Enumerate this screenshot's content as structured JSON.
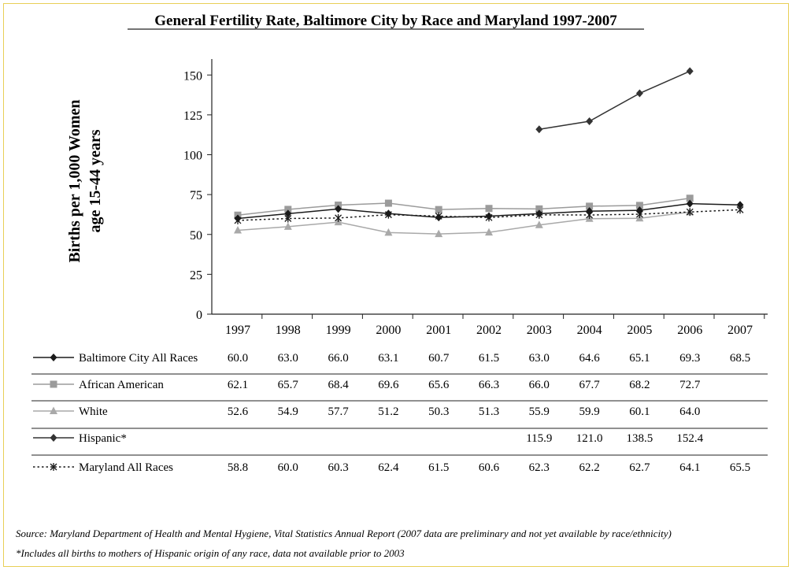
{
  "chart_data": {
    "type": "line",
    "title": "General Fertility Rate, Baltimore City by Race and Maryland 1997-2007",
    "ylabel_line1": "Births per 1,000 Women",
    "ylabel_line2": "age 15-44 years",
    "xlabel": "",
    "x": [
      "1997",
      "1998",
      "1999",
      "2000",
      "2001",
      "2002",
      "2003",
      "2004",
      "2005",
      "2006",
      "2007"
    ],
    "ylim": [
      0,
      160
    ],
    "yticks": [
      0,
      25,
      50,
      75,
      100,
      125,
      150
    ],
    "grid": false,
    "legend": "data-table-below",
    "series": [
      {
        "name": "Baltimore City All Races",
        "marker": "diamond",
        "color": "#1a1a1a",
        "dash": "solid",
        "values": [
          60.0,
          63.0,
          66.0,
          63.1,
          60.7,
          61.5,
          63.0,
          64.6,
          65.1,
          69.3,
          68.5
        ],
        "labels": [
          "60.0",
          "63.0",
          "66.0",
          "63.1",
          "60.7",
          "61.5",
          "63.0",
          "64.6",
          "65.1",
          "69.3",
          "68.5"
        ]
      },
      {
        "name": "African American",
        "marker": "square",
        "color": "#9b9b9b",
        "dash": "solid",
        "values": [
          62.1,
          65.7,
          68.4,
          69.6,
          65.6,
          66.3,
          66.0,
          67.7,
          68.2,
          72.7,
          null
        ],
        "labels": [
          "62.1",
          "65.7",
          "68.4",
          "69.6",
          "65.6",
          "66.3",
          "66.0",
          "67.7",
          "68.2",
          "72.7",
          ""
        ]
      },
      {
        "name": "White",
        "marker": "triangle",
        "color": "#a9a9a9",
        "dash": "solid",
        "values": [
          52.6,
          54.9,
          57.7,
          51.2,
          50.3,
          51.3,
          55.9,
          59.9,
          60.1,
          64.0,
          null
        ],
        "labels": [
          "52.6",
          "54.9",
          "57.7",
          "51.2",
          "50.3",
          "51.3",
          "55.9",
          "59.9",
          "60.1",
          "64.0",
          ""
        ]
      },
      {
        "name": "Hispanic*",
        "marker": "diamond",
        "color": "#333333",
        "dash": "solid",
        "values": [
          null,
          null,
          null,
          null,
          null,
          null,
          115.9,
          121.0,
          138.5,
          152.4,
          null
        ],
        "labels": [
          "",
          "",
          "",
          "",
          "",
          "",
          "115.9",
          "121.0",
          "138.5",
          "152.4",
          ""
        ]
      },
      {
        "name": "Maryland All Races",
        "marker": "asterisk",
        "color": "#1a1a1a",
        "dash": "dotted",
        "values": [
          58.8,
          60.0,
          60.3,
          62.4,
          61.5,
          60.6,
          62.3,
          62.2,
          62.7,
          64.1,
          65.5
        ],
        "labels": [
          "58.8",
          "60.0",
          "60.3",
          "62.4",
          "61.5",
          "60.6",
          "62.3",
          "62.2",
          "62.7",
          "64.1",
          "65.5"
        ]
      }
    ]
  },
  "source_note": "Source: Maryland Department of Health and Mental Hygiene, Vital Statistics Annual Report  (2007 data are preliminary and not yet available by race/ethnicity)",
  "footnote": "*Includes all births to mothers of Hispanic origin of any race, data not available prior to 2003"
}
